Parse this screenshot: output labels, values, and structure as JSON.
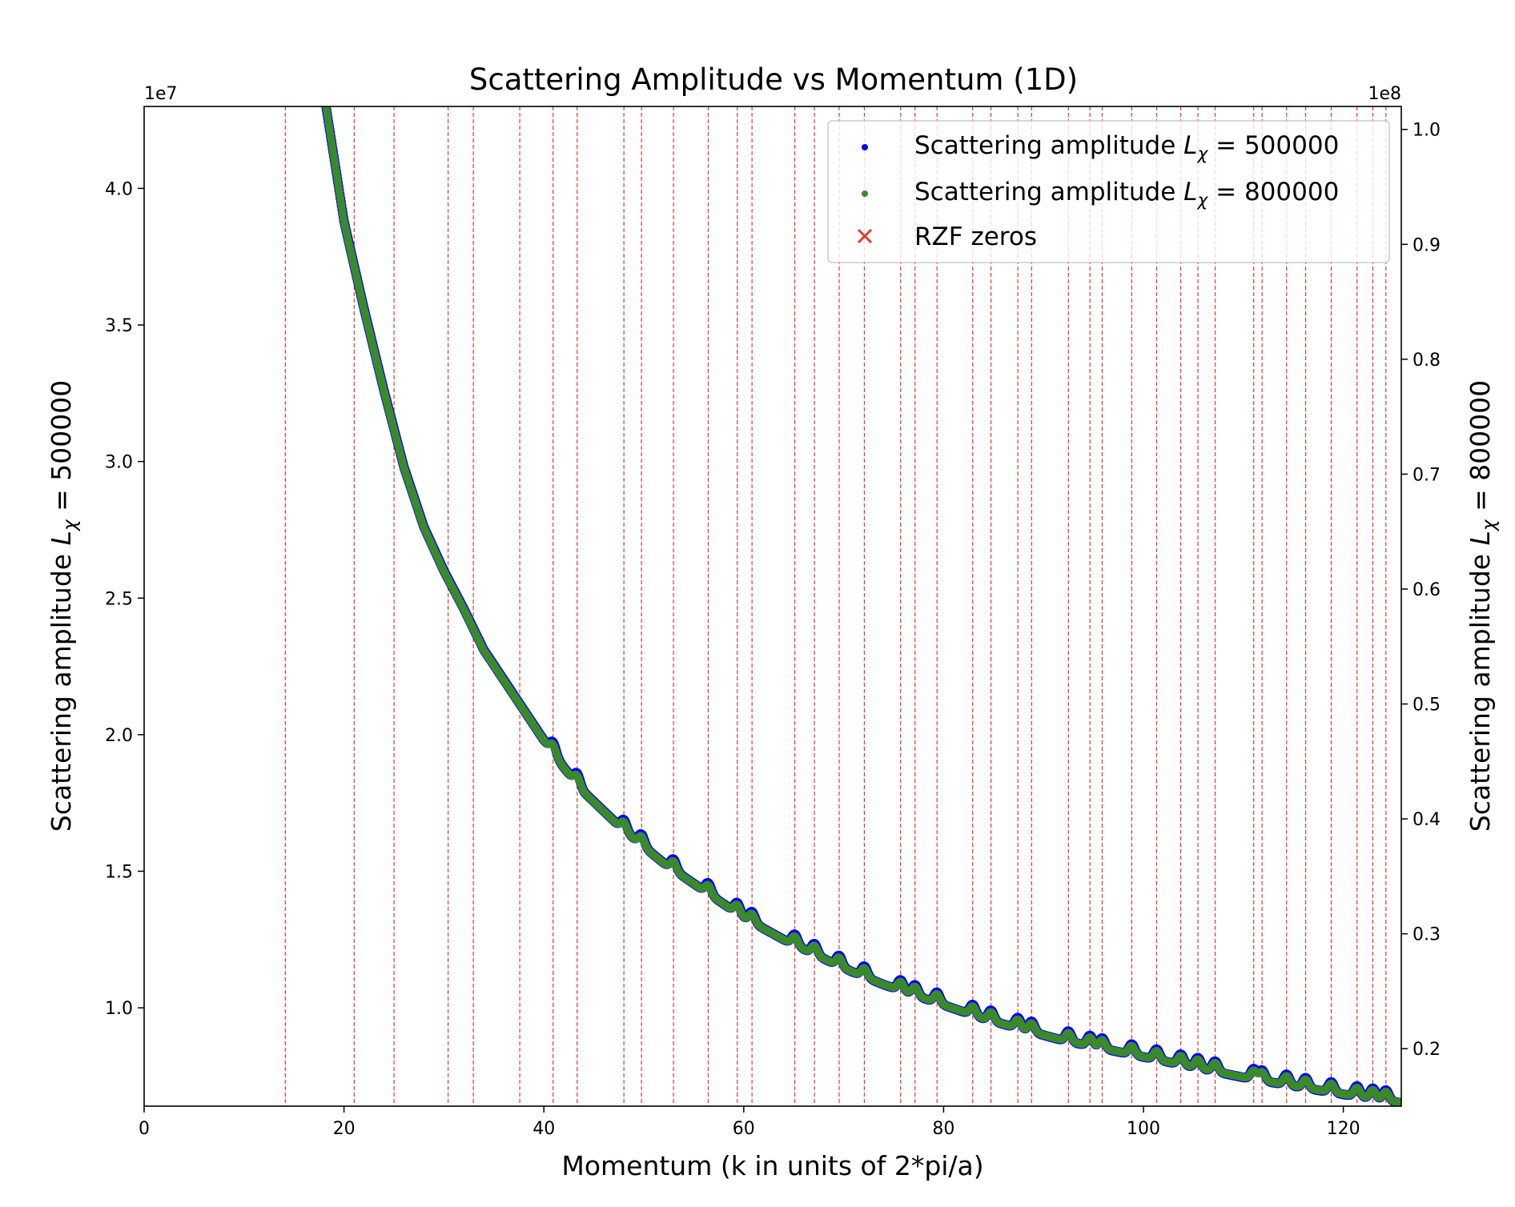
{
  "chart_data": {
    "type": "scatter",
    "title": "Scattering Amplitude vs Momentum (1D)",
    "xlabel": "Momentum (k in units of 2*pi/a)",
    "ylabel_left": "Scattering amplitude L_χ = 500000",
    "ylabel_right": "Scattering amplitude L_χ = 800000",
    "offset_left": "1e7",
    "offset_right": "1e8",
    "xlim": [
      0,
      125.8
    ],
    "ylim_left": [
      6.4,
      43.0
    ],
    "ylim_right": [
      0.15,
      1.02
    ],
    "x_ticks": [
      0,
      20,
      40,
      60,
      80,
      100,
      120
    ],
    "x_tick_labels": [
      "0",
      "20",
      "40",
      "60",
      "80",
      "100",
      "120"
    ],
    "y_left_ticks": [
      1.0,
      1.5,
      2.0,
      2.5,
      3.0,
      3.5,
      4.0
    ],
    "y_left_tick_labels": [
      "1.0",
      "1.5",
      "2.0",
      "2.5",
      "3.0",
      "3.5",
      "4.0"
    ],
    "y_right_ticks": [
      0.2,
      0.3,
      0.4,
      0.5,
      0.6,
      0.7,
      0.8,
      0.9,
      1.0
    ],
    "y_right_tick_labels": [
      "0.2",
      "0.3",
      "0.4",
      "0.5",
      "0.6",
      "0.7",
      "0.8",
      "0.9",
      "1.0"
    ],
    "legend": {
      "location": "top-right",
      "entries": [
        {
          "label": "Scattering amplitude L_χ = 500000",
          "color": "#0000ff",
          "marker": "dot"
        },
        {
          "label": "Scattering amplitude L_χ = 800000",
          "color": "#3a8a2a",
          "marker": "dot"
        },
        {
          "label": "RZF zeros",
          "color": "#e8392a",
          "marker": "x"
        }
      ]
    },
    "rzf_zeros": [
      14.13,
      21.02,
      25.01,
      30.42,
      32.94,
      37.59,
      40.92,
      43.33,
      48.01,
      49.77,
      52.97,
      56.45,
      59.35,
      60.83,
      65.11,
      67.08,
      69.55,
      72.07,
      75.7,
      77.14,
      79.34,
      82.91,
      84.74,
      87.43,
      88.81,
      92.49,
      94.65,
      95.87,
      98.83,
      101.32,
      103.73,
      105.45,
      107.17,
      111.03,
      111.87,
      114.32,
      116.23,
      118.79,
      121.37,
      122.95,
      124.26
    ],
    "series": [
      {
        "name": "Scattering amplitude L_χ = 500000",
        "color": "#0000ff",
        "axis": "left",
        "x": [
          18.2,
          20,
          22,
          24,
          26,
          28,
          30,
          32,
          34,
          36,
          38,
          40,
          42,
          44,
          46,
          48,
          50,
          52,
          54,
          56,
          58,
          60,
          62,
          64,
          66,
          68,
          70,
          72,
          74,
          76,
          78,
          80,
          82,
          84,
          86,
          88,
          90,
          92,
          94,
          96,
          98,
          100,
          102,
          104,
          106,
          108,
          110,
          112,
          114,
          116,
          118,
          120,
          122,
          124,
          125.8
        ],
        "y": [
          43.0,
          38.8,
          35.6,
          32.6,
          29.8,
          27.6,
          26.0,
          24.6,
          23.1,
          22.0,
          20.9,
          19.8,
          18.8,
          17.9,
          17.2,
          16.5,
          15.9,
          15.3,
          14.8,
          14.3,
          13.8,
          13.3,
          12.9,
          12.5,
          12.15,
          11.8,
          11.45,
          11.15,
          10.85,
          10.6,
          10.35,
          10.1,
          9.85,
          9.6,
          9.4,
          9.2,
          9.0,
          8.8,
          8.65,
          8.5,
          8.35,
          8.2,
          8.05,
          7.9,
          7.75,
          7.6,
          7.45,
          7.32,
          7.2,
          7.07,
          6.95,
          6.83,
          6.72,
          6.62,
          6.52
        ]
      },
      {
        "name": "Scattering amplitude L_χ = 800000",
        "color": "#3a8a2a",
        "axis": "right",
        "x": [
          18.2,
          20,
          22,
          24,
          26,
          28,
          30,
          32,
          34,
          36,
          38,
          40,
          42,
          44,
          46,
          48,
          50,
          52,
          54,
          56,
          58,
          60,
          62,
          64,
          66,
          68,
          70,
          72,
          74,
          76,
          78,
          80,
          82,
          84,
          86,
          88,
          90,
          92,
          94,
          96,
          98,
          100,
          102,
          104,
          106,
          108,
          110,
          112,
          114,
          116,
          118,
          120,
          122,
          124,
          125.8
        ],
        "y": [
          1.02,
          0.9197,
          0.8436,
          0.7723,
          0.7057,
          0.6534,
          0.6154,
          0.5821,
          0.5465,
          0.5204,
          0.4943,
          0.4682,
          0.4445,
          0.4231,
          0.4065,
          0.3899,
          0.3756,
          0.3614,
          0.3495,
          0.3376,
          0.3258,
          0.3139,
          0.3044,
          0.2949,
          0.2866,
          0.2783,
          0.27,
          0.2629,
          0.2558,
          0.2499,
          0.2439,
          0.238,
          0.2321,
          0.2261,
          0.2214,
          0.2166,
          0.2119,
          0.2071,
          0.2036,
          0.2,
          0.1965,
          0.1929,
          0.1893,
          0.1858,
          0.1822,
          0.1787,
          0.1751,
          0.172,
          0.1692,
          0.1661,
          0.1633,
          0.1604,
          0.1578,
          0.1554,
          0.1531
        ]
      }
    ]
  }
}
